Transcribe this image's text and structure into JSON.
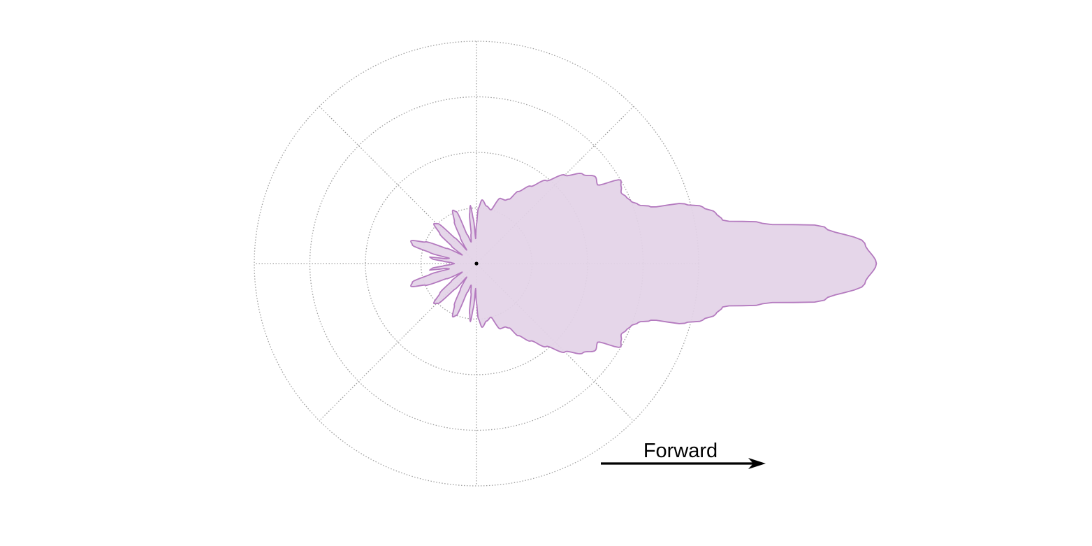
{
  "diagram": {
    "type": "polar-radiation-pattern",
    "direction_label": "Forward",
    "colors": {
      "pattern_fill": "#e3d3e7",
      "pattern_stroke": "#b47abf",
      "grid": "#a0a0a0",
      "arrow": "#000000"
    },
    "grid": {
      "rings": 4,
      "spokes": 8
    },
    "ring_scale_max": 4,
    "pattern_radius": [
      [
        0,
        7.2
      ],
      [
        3,
        7.0
      ],
      [
        6,
        6.3
      ],
      [
        8,
        5.2
      ],
      [
        10,
        4.5
      ],
      [
        12,
        4.4
      ],
      [
        14,
        4.2
      ],
      [
        16,
        3.9
      ],
      [
        18,
        3.3
      ],
      [
        20,
        3.1
      ],
      [
        22,
        3.0
      ],
      [
        24,
        2.95
      ],
      [
        26,
        2.9
      ],
      [
        28,
        2.95
      ],
      [
        30,
        3.0
      ],
      [
        33,
        2.6
      ],
      [
        36,
        2.65
      ],
      [
        40,
        2.5
      ],
      [
        45,
        2.25
      ],
      [
        50,
        1.95
      ],
      [
        55,
        1.7
      ],
      [
        60,
        1.5
      ],
      [
        63,
        1.3
      ],
      [
        66,
        1.25
      ],
      [
        70,
        1.25
      ],
      [
        75,
        1.0
      ],
      [
        80,
        1.05
      ],
      [
        85,
        1.15
      ],
      [
        88,
        1.0
      ],
      [
        90,
        0.7
      ],
      [
        92,
        0.45
      ],
      [
        94,
        0.8
      ],
      [
        96,
        1.05
      ],
      [
        98,
        0.9
      ],
      [
        100,
        0.55
      ],
      [
        104,
        0.4
      ],
      [
        108,
        0.55
      ],
      [
        111,
        1.0
      ],
      [
        114,
        1.05
      ],
      [
        118,
        0.85
      ],
      [
        122,
        0.55
      ],
      [
        126,
        0.3
      ],
      [
        130,
        0.6
      ],
      [
        134,
        1.0
      ],
      [
        137,
        1.05
      ],
      [
        141,
        0.85
      ],
      [
        145,
        0.55
      ],
      [
        149,
        0.3
      ],
      [
        153,
        0.6
      ],
      [
        157,
        1.0
      ],
      [
        161,
        1.25
      ],
      [
        164,
        1.2
      ],
      [
        167,
        0.85
      ],
      [
        169,
        0.5
      ],
      [
        171,
        0.55
      ],
      [
        172,
        0.85
      ],
      [
        174,
        0.8
      ],
      [
        176,
        0.6
      ],
      [
        178,
        0.45
      ],
      [
        180,
        0.4
      ]
    ]
  }
}
